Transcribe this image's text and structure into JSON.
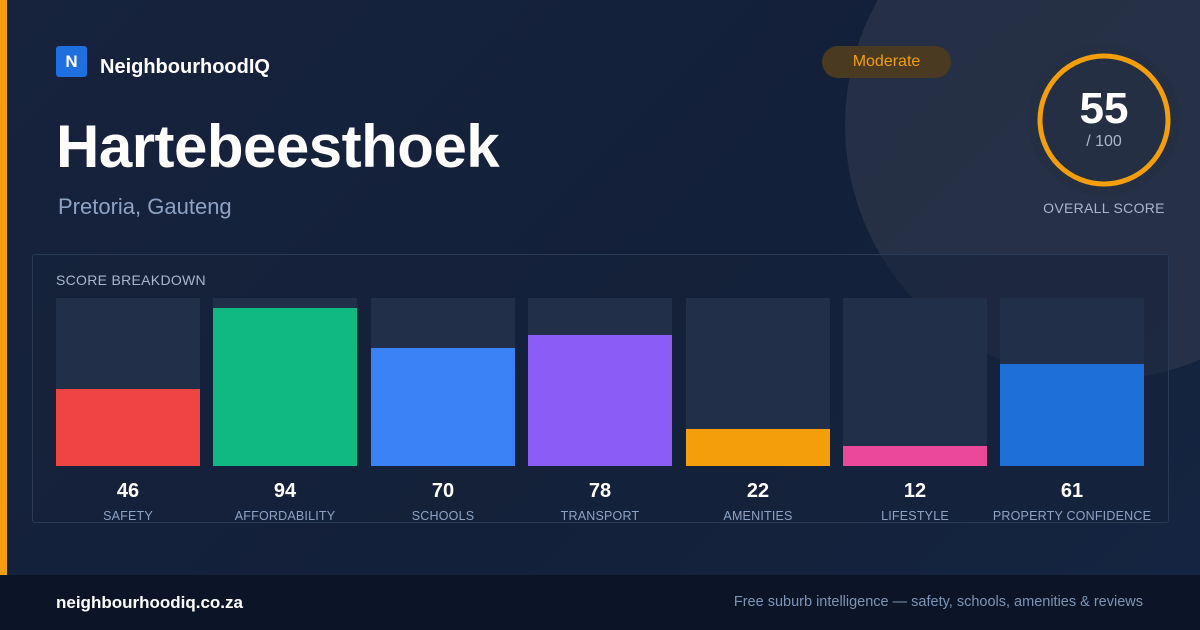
{
  "brand": {
    "logo_letter": "N",
    "name": "NeighbourhoodIQ"
  },
  "header": {
    "title": "Hartebeesthoek",
    "subtitle": "Pretoria, Gauteng"
  },
  "badge": {
    "label": "Moderate"
  },
  "overall": {
    "value": "55",
    "max_label": "/ 100",
    "label": "OVERALL SCORE",
    "fraction": 0.55,
    "ring_color": "#f59e0b"
  },
  "chart_data": {
    "type": "bar",
    "title": "SCORE BREAKDOWN",
    "ylim": [
      0,
      100
    ],
    "grid": false,
    "categories": [
      "SAFETY",
      "AFFORDABILITY",
      "SCHOOLS",
      "TRANSPORT",
      "AMENITIES",
      "LIFESTYLE",
      "PROPERTY CONFIDENCE"
    ],
    "values": [
      46,
      94,
      70,
      78,
      22,
      12,
      61
    ],
    "colors": [
      "#ef4444",
      "#10b981",
      "#3b82f6",
      "#8b5cf6",
      "#f59e0b",
      "#ec4899",
      "#1f6fd9"
    ]
  },
  "footer": {
    "url": "neighbourhoodiq.co.za",
    "tagline": "Free suburb intelligence — safety, schools, amenities & reviews"
  }
}
